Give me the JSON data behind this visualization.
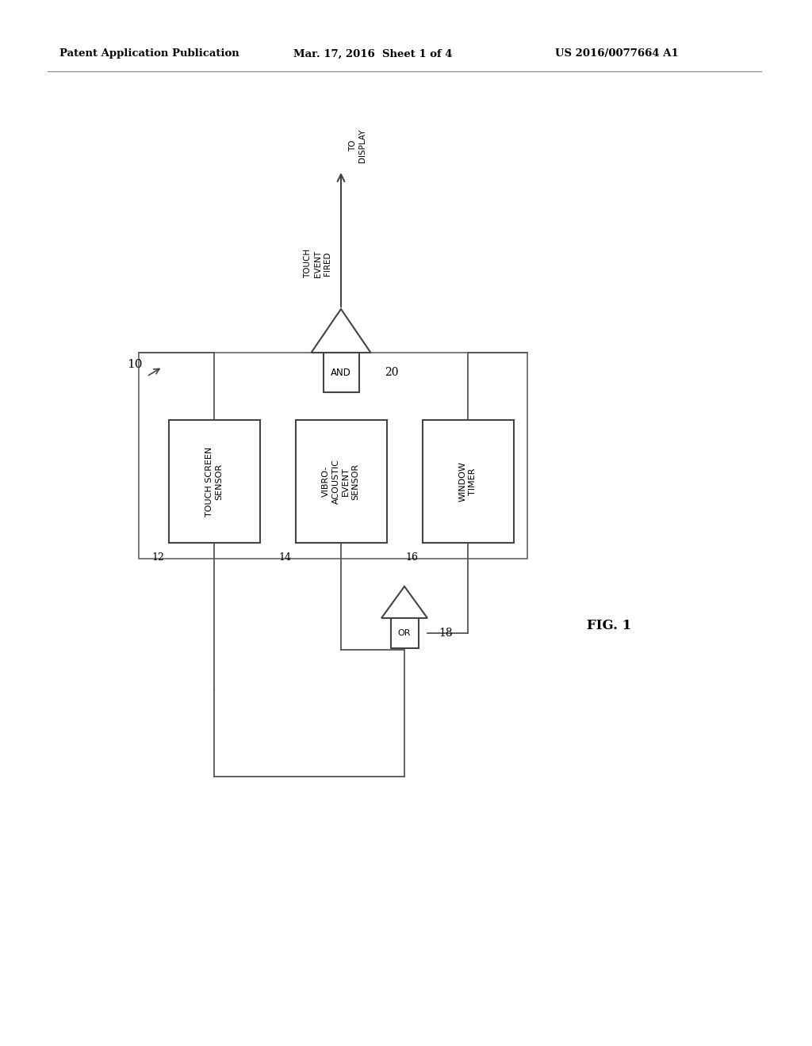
{
  "bg_color": "#ffffff",
  "header_left": "Patent Application Publication",
  "header_mid": "Mar. 17, 2016  Sheet 1 of 4",
  "header_right": "US 2016/0077664 A1",
  "fig_label": "FIG. 1",
  "line_color": "#555555",
  "text_color": "#000000",
  "box_edge_color": "#444444",
  "outer_box_color": "#555555"
}
